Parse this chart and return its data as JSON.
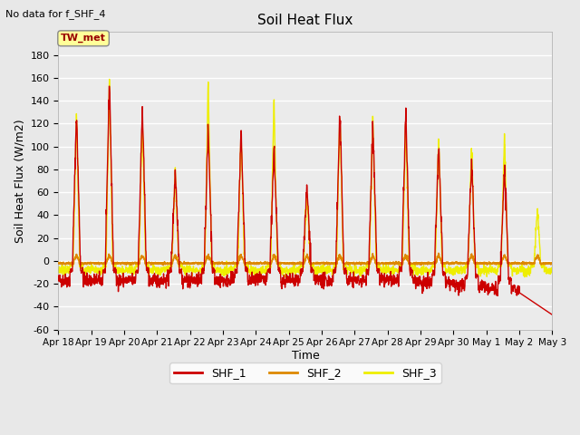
{
  "title": "Soil Heat Flux",
  "subtitle": "No data for f_SHF_4",
  "ylabel": "Soil Heat Flux (W/m2)",
  "xlabel": "Time",
  "legend_label": "TW_met",
  "series_labels": [
    "SHF_1",
    "SHF_2",
    "SHF_3"
  ],
  "series_colors": [
    "#cc0000",
    "#dd8800",
    "#eeee00"
  ],
  "ylim": [
    -60,
    200
  ],
  "yticks": [
    -60,
    -40,
    -20,
    0,
    20,
    40,
    60,
    80,
    100,
    120,
    140,
    160,
    180
  ],
  "background_color": "#e8e8e8",
  "plot_background": "#ebebeb",
  "grid_color": "#ffffff",
  "n_days": 15
}
